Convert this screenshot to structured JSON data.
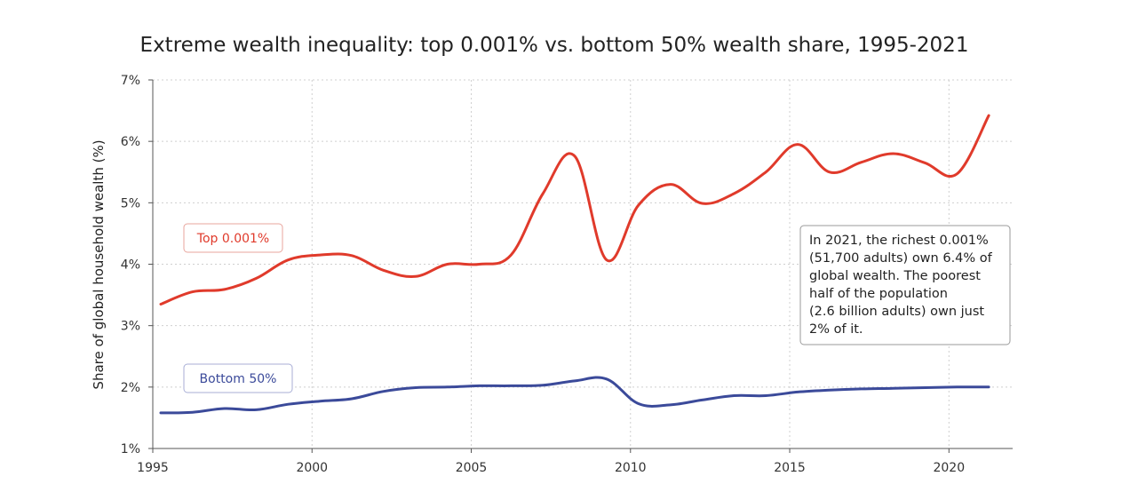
{
  "chart_data": {
    "type": "line",
    "title": "Extreme wealth inequality: top 0.001% vs. bottom 50% wealth share, 1995-2021",
    "xlabel": "",
    "ylabel": "Share of global household wealth (%)",
    "xlim": [
      1995,
      2022
    ],
    "ylim": [
      1,
      7
    ],
    "x_ticks": [
      "1995",
      "2000",
      "2005",
      "2010",
      "2015",
      "2020"
    ],
    "y_ticks": [
      "1%",
      "2%",
      "3%",
      "4%",
      "5%",
      "6%",
      "7%"
    ],
    "grid": "dotted",
    "series": [
      {
        "name": "Top 0.001%",
        "color": "#e03a2b",
        "x": [
          1995,
          1996,
          1997,
          1998,
          1999,
          2000,
          2001,
          2002,
          2003,
          2004,
          2005,
          2006,
          2007,
          2008,
          2009,
          2010,
          2011,
          2012,
          2013,
          2014,
          2015,
          2016,
          2017,
          2018,
          2019,
          2020,
          2021
        ],
        "values": [
          3.35,
          3.55,
          3.59,
          3.77,
          4.07,
          4.15,
          4.14,
          3.9,
          3.8,
          4.0,
          4.0,
          4.15,
          5.15,
          5.76,
          4.07,
          4.96,
          5.3,
          4.99,
          5.15,
          5.5,
          5.95,
          5.5,
          5.66,
          5.8,
          5.65,
          5.47,
          6.42
        ]
      },
      {
        "name": "Bottom 50%",
        "color": "#3b4a9a",
        "x": [
          1995,
          1996,
          1997,
          1998,
          1999,
          2000,
          2001,
          2002,
          2003,
          2004,
          2005,
          2006,
          2007,
          2008,
          2009,
          2010,
          2011,
          2012,
          2013,
          2014,
          2015,
          2016,
          2017,
          2018,
          2019,
          2020,
          2021
        ],
        "values": [
          1.58,
          1.59,
          1.65,
          1.63,
          1.72,
          1.77,
          1.81,
          1.93,
          1.99,
          2.0,
          2.02,
          2.02,
          2.03,
          2.1,
          2.13,
          1.73,
          1.71,
          1.79,
          1.86,
          1.86,
          1.92,
          1.95,
          1.97,
          1.98,
          1.99,
          2.0,
          2.0
        ]
      }
    ],
    "annotation": [
      "In 2021, the richest 0.001%",
      "(51,700 adults) own 6.4% of",
      "global wealth. The poorest",
      "half of the population",
      "(2.6 billion adults) own just",
      "2% of it."
    ]
  }
}
